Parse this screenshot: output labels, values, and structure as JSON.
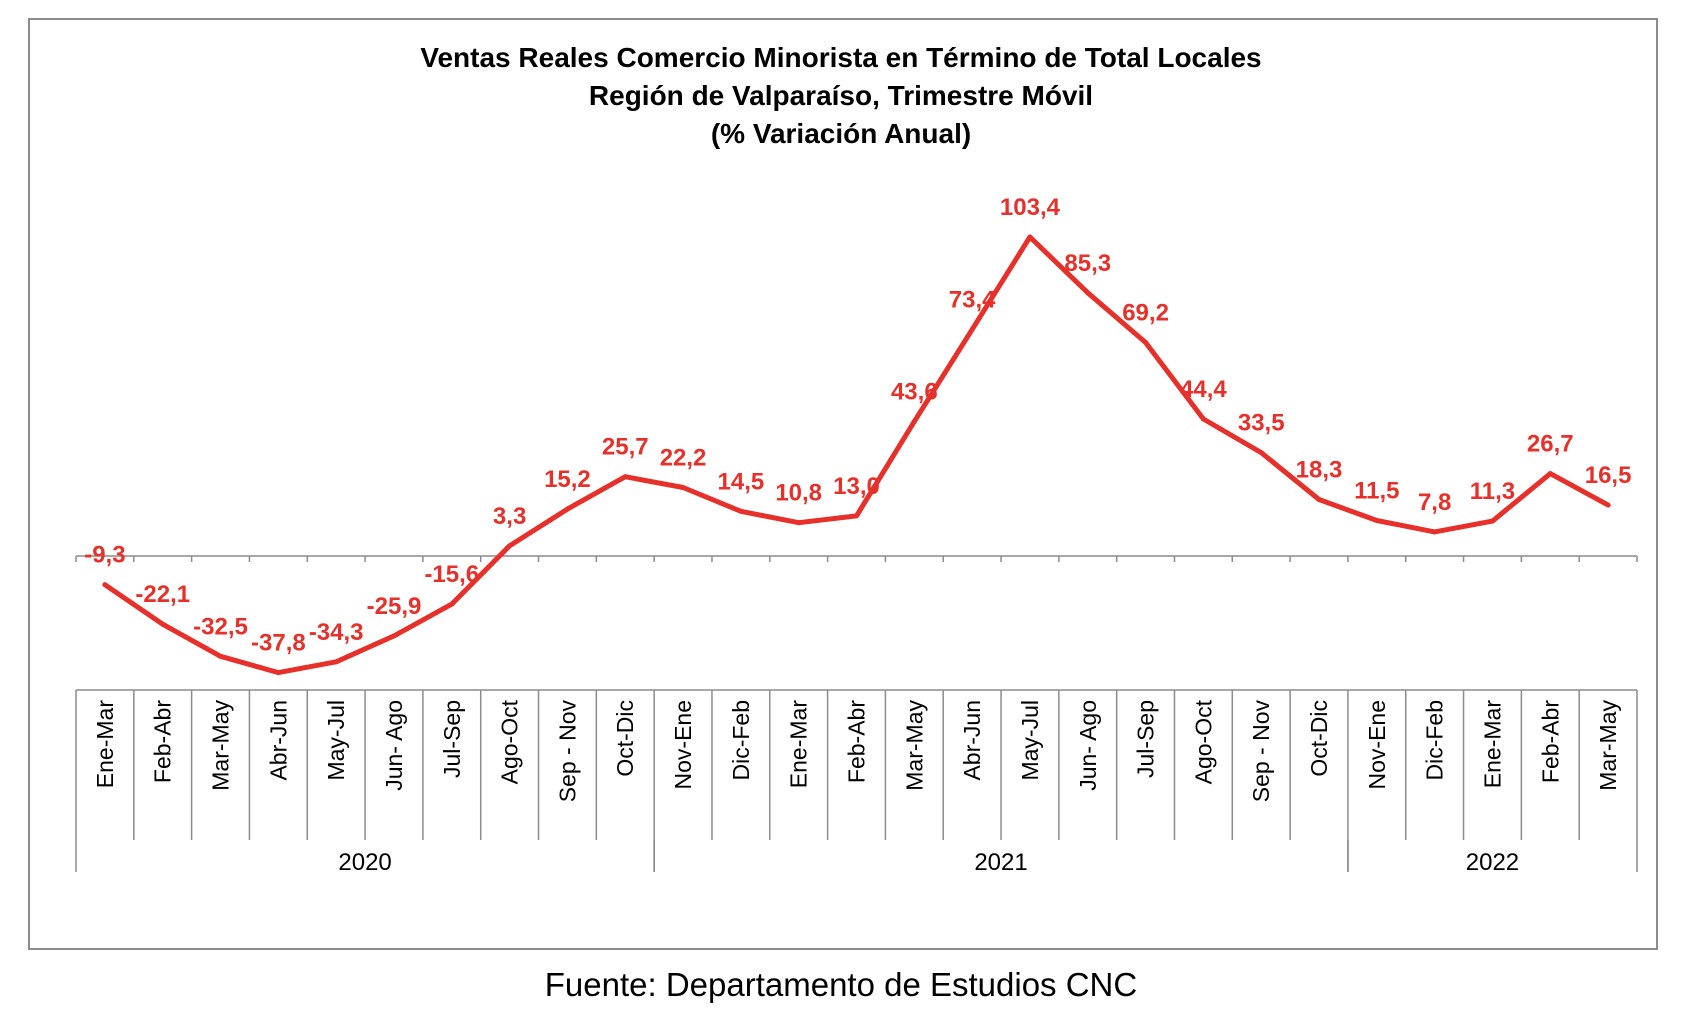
{
  "chart_data": {
    "type": "line",
    "title": [
      "Ventas Reales Comercio Minorista  en Término de Total Locales",
      "Región de Valparaíso, Trimestre Móvil",
      "(% Variación Anual)"
    ],
    "categories": [
      "Ene-Mar",
      "Feb-Abr",
      "Mar-May",
      "Abr-Jun",
      "May-Jul",
      "Jun- Ago",
      "Jul-Sep",
      "Ago-Oct",
      "Sep - Nov",
      "Oct-Dic",
      "Nov-Ene",
      "Dic-Feb",
      "Ene-Mar",
      "Feb-Abr",
      "Mar-May",
      "Abr-Jun",
      "May-Jul",
      "Jun- Ago",
      "Jul-Sep",
      "Ago-Oct",
      "Sep - Nov",
      "Oct-Dic",
      "Nov-Ene",
      "Dic-Feb",
      "Ene-Mar",
      "Feb-Abr",
      "Mar-May"
    ],
    "year_groups": [
      {
        "label": "2020",
        "start": 0,
        "end": 9
      },
      {
        "label": "2021",
        "start": 10,
        "end": 21
      },
      {
        "label": "2022",
        "start": 22,
        "end": 26
      }
    ],
    "series": [
      {
        "values": [
          -9.3,
          -22.1,
          -32.5,
          -37.8,
          -34.3,
          -25.9,
          -15.6,
          3.3,
          15.2,
          25.7,
          22.2,
          14.5,
          10.8,
          13.0,
          43.6,
          73.4,
          103.4,
          85.3,
          69.2,
          44.4,
          33.5,
          18.3,
          11.5,
          7.8,
          11.3,
          26.7,
          16.5
        ],
        "labels": [
          "-9,3",
          "-22,1",
          "-32,5",
          "-37,8",
          "-34,3",
          "-25,9",
          "-15,6",
          "3,3",
          "15,2",
          "25,7",
          "22,2",
          "14,5",
          "10,8",
          "13,0",
          "43,6",
          "73,4",
          "103,4",
          "85,3",
          "69,2",
          "44,4",
          "33,5",
          "18,3",
          "11,5",
          "7,8",
          "11,3",
          "26,7",
          "16,5"
        ],
        "color": "#e8302a"
      }
    ],
    "xlabel": "",
    "ylabel": "",
    "ylim": [
      -45,
      115
    ],
    "grid": false,
    "legend": "none"
  },
  "source": "Fuente: Departamento de Estudios CNC"
}
